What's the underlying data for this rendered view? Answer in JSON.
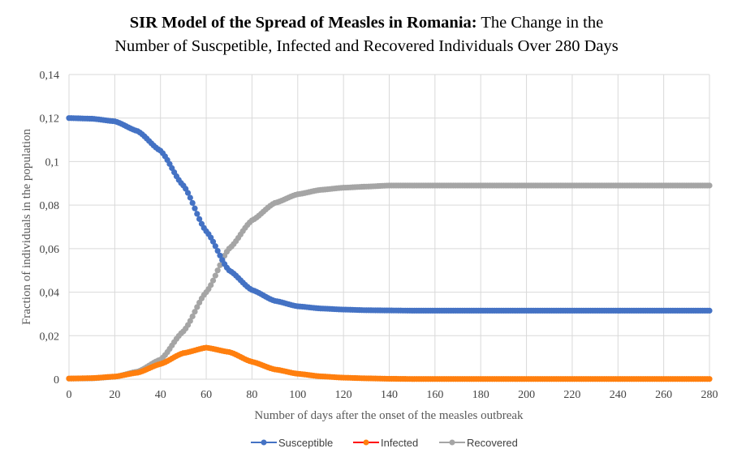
{
  "chart_data": {
    "type": "line",
    "title_bold": "SIR Model of the Spread of Measles in Romania:",
    "title_rest_line1": " The Change in the",
    "title_line2": "Number of Suscpetible, Infected and Recovered Individuals Over 280 Days",
    "xlabel": "Number of days after the onset of the measles outbreak",
    "ylabel": "Fraction of individuals in the population",
    "xlim": [
      0,
      280
    ],
    "ylim": [
      0,
      0.14
    ],
    "x_ticks": [
      "0",
      "20",
      "40",
      "60",
      "80",
      "100",
      "120",
      "140",
      "160",
      "180",
      "200",
      "220",
      "240",
      "260",
      "280"
    ],
    "y_ticks": [
      "0",
      "0,02",
      "0,04",
      "0,06",
      "0,08",
      "0,1",
      "0,12",
      "0,14"
    ],
    "grid": true,
    "legend_position": "bottom",
    "x": [
      0,
      10,
      20,
      30,
      40,
      50,
      60,
      70,
      80,
      90,
      100,
      110,
      120,
      130,
      140,
      150,
      160,
      170,
      180,
      190,
      200,
      210,
      220,
      230,
      240,
      250,
      260,
      270,
      280
    ],
    "series": [
      {
        "name": "Susceptible",
        "color": "#4472c4",
        "line_color": "#4472c4",
        "values": [
          0.12,
          0.1197,
          0.1185,
          0.114,
          0.105,
          0.089,
          0.068,
          0.05,
          0.041,
          0.036,
          0.0335,
          0.0325,
          0.032,
          0.0317,
          0.0316,
          0.0315,
          0.0315,
          0.0315,
          0.0315,
          0.0315,
          0.0315,
          0.0315,
          0.0315,
          0.0315,
          0.0315,
          0.0315,
          0.0315,
          0.0315,
          0.0315
        ]
      },
      {
        "name": "Infected",
        "color": "#ff7f0e",
        "line_color": "#ff0000",
        "values": [
          0.0003,
          0.0005,
          0.0012,
          0.003,
          0.007,
          0.012,
          0.0145,
          0.0125,
          0.008,
          0.0045,
          0.0025,
          0.0013,
          0.0007,
          0.0004,
          0.0002,
          0.0001,
          0.0001,
          0.0001,
          0.0001,
          0.0001,
          0.0001,
          0.0001,
          0.0001,
          0.0001,
          0.0001,
          0.0001,
          0.0001,
          0.0001,
          0.0001
        ]
      },
      {
        "name": "Recovered",
        "color": "#a5a5a5",
        "line_color": "#a5a5a5",
        "values": [
          0.0003,
          0.0004,
          0.0011,
          0.0035,
          0.009,
          0.022,
          0.04,
          0.06,
          0.073,
          0.081,
          0.085,
          0.087,
          0.088,
          0.0885,
          0.089,
          0.089,
          0.089,
          0.089,
          0.089,
          0.089,
          0.089,
          0.089,
          0.089,
          0.089,
          0.089,
          0.089,
          0.089,
          0.089,
          0.089
        ]
      }
    ]
  }
}
